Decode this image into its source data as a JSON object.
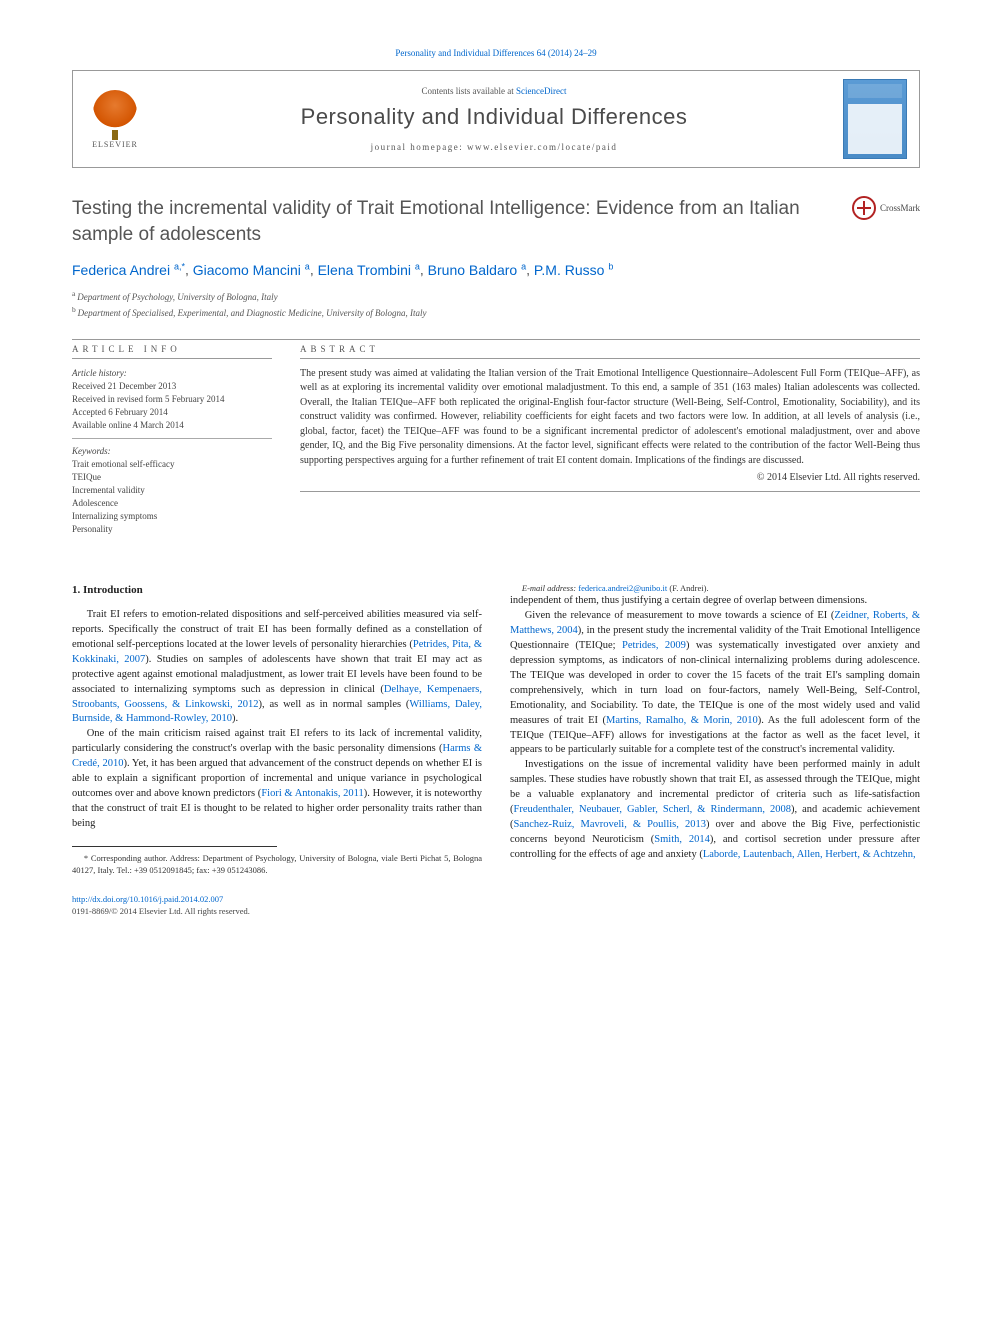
{
  "header": {
    "citation_link": "Personality and Individual Differences 64 (2014) 24–29",
    "contents_text": "Contents lists available at ",
    "contents_link": "ScienceDirect",
    "journal_name": "Personality and Individual Differences",
    "homepage_label": "journal homepage: ",
    "homepage_url": "www.elsevier.com/locate/paid",
    "publisher": "ELSEVIER"
  },
  "title": "Testing the incremental validity of Trait Emotional Intelligence: Evidence from an Italian sample of adolescents",
  "crossmark_label": "CrossMark",
  "authors_html": "Federica Andrei",
  "authors": [
    {
      "name": "Federica Andrei",
      "sup": "a,",
      "mark": "*"
    },
    {
      "name": "Giacomo Mancini",
      "sup": "a"
    },
    {
      "name": "Elena Trombini",
      "sup": "a"
    },
    {
      "name": "Bruno Baldaro",
      "sup": "a"
    },
    {
      "name": "P.M. Russo",
      "sup": "b"
    }
  ],
  "affiliations": [
    {
      "sup": "a",
      "text": "Department of Psychology, University of Bologna, Italy"
    },
    {
      "sup": "b",
      "text": "Department of Specialised, Experimental, and Diagnostic Medicine, University of Bologna, Italy"
    }
  ],
  "article_info": {
    "header": "ARTICLE INFO",
    "history_label": "Article history:",
    "received": "Received 21 December 2013",
    "revised": "Received in revised form 5 February 2014",
    "accepted": "Accepted 6 February 2014",
    "online": "Available online 4 March 2014",
    "keywords_label": "Keywords:",
    "keywords": [
      "Trait emotional self-efficacy",
      "TEIQue",
      "Incremental validity",
      "Adolescence",
      "Internalizing symptoms",
      "Personality"
    ]
  },
  "abstract": {
    "header": "ABSTRACT",
    "text": "The present study was aimed at validating the Italian version of the Trait Emotional Intelligence Questionnaire–Adolescent Full Form (TEIQue–AFF), as well as at exploring its incremental validity over emotional maladjustment. To this end, a sample of 351 (163 males) Italian adolescents was collected. Overall, the Italian TEIQue–AFF both replicated the original-English four-factor structure (Well-Being, Self-Control, Emotionality, Sociability), and its construct validity was confirmed. However, reliability coefficients for eight facets and two factors were low. In addition, at all levels of analysis (i.e., global, factor, facet) the TEIQue–AFF was found to be a significant incremental predictor of adolescent's emotional maladjustment, over and above gender, IQ, and the Big Five personality dimensions. At the factor level, significant effects were related to the contribution of the factor Well-Being thus supporting perspectives arguing for a further refinement of trait EI content domain. Implications of the findings are discussed.",
    "copyright": "© 2014 Elsevier Ltd. All rights reserved."
  },
  "body": {
    "section_heading": "1. Introduction",
    "p1a": "Trait EI refers to emotion-related dispositions and self-perceived abilities measured via self-reports. Specifically the construct of trait EI has been formally defined as a constellation of emotional self-perceptions located at the lower levels of personality hierarchies (",
    "r1": "Petrides, Pita, & Kokkinaki, 2007",
    "p1b": "). Studies on samples of adolescents have shown that trait EI may act as protective agent against emotional maladjustment, as lower trait EI levels have been found to be associated to internalizing symptoms such as depression in clinical (",
    "r2": "Delhaye, Kempenaers, Stroobants, Goossens, & Linkowski, 2012",
    "p1c": "), as well as in normal samples (",
    "r3": "Williams, Daley, Burnside, & Hammond-Rowley, 2010",
    "p1d": ").",
    "p2a": "One of the main criticism raised against trait EI refers to its lack of incremental validity, particularly considering the construct's overlap with the basic personality dimensions (",
    "r4": "Harms & Credé, 2010",
    "p2b": "). Yet, it has been argued that advancement of the construct depends on whether EI is able to explain a significant proportion of incremental and unique variance in psychological outcomes over and above known predictors (",
    "r5": "Fiori & Antonakis, 2011",
    "p2c": "). However, it is noteworthy that the construct of trait EI is thought to be related to higher order personality traits rather than being",
    "p3": "independent of them, thus justifying a certain degree of overlap between dimensions.",
    "p4a": "Given the relevance of measurement to move towards a science of EI (",
    "r6": "Zeidner, Roberts, & Matthews, 2004",
    "p4b": "), in the present study the incremental validity of the Trait Emotional Intelligence Questionnaire (TEIQue; ",
    "r7": "Petrides, 2009",
    "p4c": ") was systematically investigated over anxiety and depression symptoms, as indicators of non-clinical internalizing problems during adolescence. The TEIQue was developed in order to cover the 15 facets of the trait EI's sampling domain comprehensively, which in turn load on four-factors, namely Well-Being, Self-Control, Emotionality, and Sociability. To date, the TEIQue is one of the most widely used and valid measures of trait EI (",
    "r8": "Martins, Ramalho, & Morin, 2010",
    "p4d": "). As the full adolescent form of the TEIQue (TEIQue–AFF) allows for investigations at the factor as well as the facet level, it appears to be particularly suitable for a complete test of the construct's incremental validity.",
    "p5a": "Investigations on the issue of incremental validity have been performed mainly in adult samples. These studies have robustly shown that trait EI, as assessed through the TEIQue, might be a valuable explanatory and incremental predictor of criteria such as life-satisfaction (",
    "r9": "Freudenthaler, Neubauer, Gabler, Scherl, & Rindermann, 2008",
    "p5b": "), and academic achievement (",
    "r10": "Sanchez-Ruiz, Mavroveli, & Poullis, 2013",
    "p5c": ") over and above the Big Five, perfectionistic concerns beyond Neuroticism (",
    "r11": "Smith, 2014",
    "p5d": "), and cortisol secretion under pressure after controlling for the effects of age and anxiety (",
    "r12": "Laborde, Lautenbach, Allen, Herbert, & Achtzehn,"
  },
  "footnote": {
    "corr_label": "* Corresponding author. Address: Department of Psychology, University of Bologna, viale Berti Pichat 5, Bologna 40127, Italy. Tel.: +39 0512091845; fax: +39 051243086.",
    "email_label": "E-mail address: ",
    "email": "federica.andrei2@unibo.it",
    "email_suffix": " (F. Andrei)."
  },
  "footer": {
    "doi": "http://dx.doi.org/10.1016/j.paid.2014.02.007",
    "issn": "0191-8869/© 2014 Elsevier Ltd. All rights reserved."
  }
}
